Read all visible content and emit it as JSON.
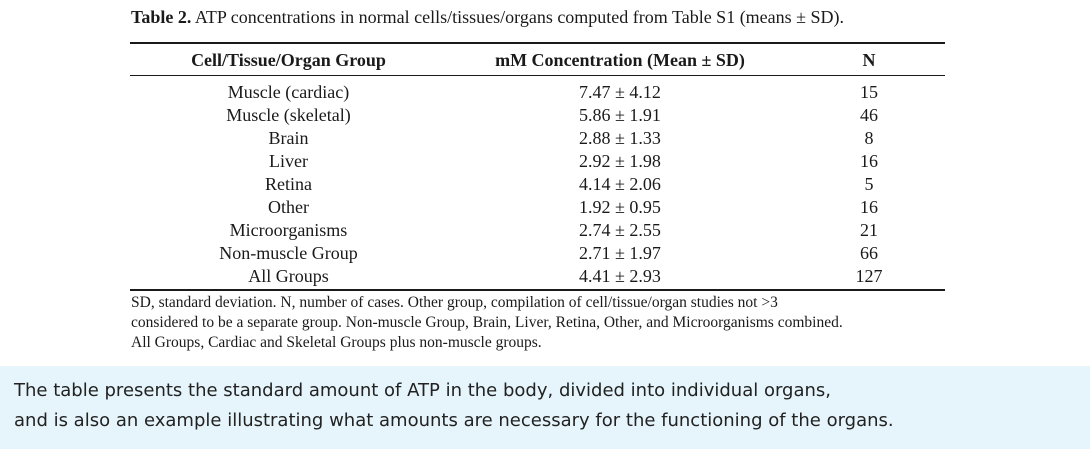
{
  "table": {
    "caption_label": "Table 2.",
    "caption_text": "ATP concentrations in normal cells/tissues/organs computed from Table S1 (means ± SD).",
    "headers": [
      "Cell/Tissue/Organ Group",
      "mM Concentration (Mean ± SD)",
      "N"
    ],
    "rows": [
      [
        "Muscle (cardiac)",
        "7.47 ± 4.12",
        "15"
      ],
      [
        "Muscle (skeletal)",
        "5.86 ± 1.91",
        "46"
      ],
      [
        "Brain",
        "2.88 ± 1.33",
        "8"
      ],
      [
        "Liver",
        "2.92 ± 1.98",
        "16"
      ],
      [
        "Retina",
        "4.14 ± 2.06",
        "5"
      ],
      [
        "Other",
        "1.92 ± 0.95",
        "16"
      ],
      [
        "Microorganisms",
        "2.74 ± 2.55",
        "21"
      ],
      [
        "Non-muscle Group",
        "2.71 ± 1.97",
        "66"
      ],
      [
        "All Groups",
        "4.41 ± 2.93",
        "127"
      ]
    ],
    "footnote_lines": [
      "SD, standard deviation.  N, number of cases.  Other group, compilation of cell/tissue/organ studies not >3",
      "considered to be a separate group. Non-muscle Group, Brain, Liver, Retina, Other, and Microorganisms combined.",
      "All Groups, Cardiac and Skeletal Groups plus non-muscle groups."
    ]
  },
  "comment": {
    "line1": "The table presents the standard amount of ATP in the body, divided into individual organs,",
    "line2": "and is also an example illustrating what amounts are necessary for the functioning of the organs."
  }
}
